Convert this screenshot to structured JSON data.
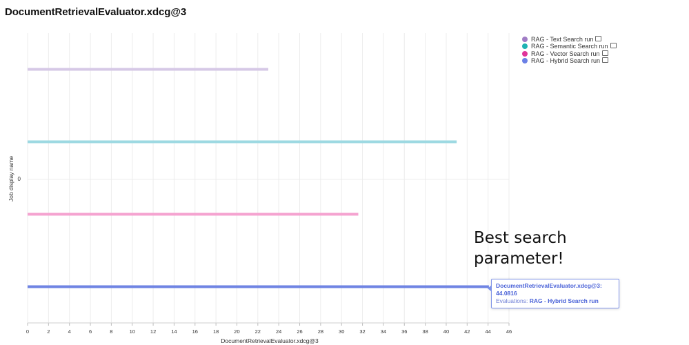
{
  "chart_title": "DocumentRetrievalEvaluator.xdcg@3",
  "chart_data": {
    "type": "bar",
    "orientation": "horizontal",
    "xlabel": "DocumentRetrievalEvaluator.xdcg@3",
    "ylabel": "Job display name",
    "y_tick": "0",
    "xlim": [
      0,
      46
    ],
    "x_ticks": [
      0,
      2,
      4,
      6,
      8,
      10,
      12,
      14,
      16,
      18,
      20,
      22,
      24,
      26,
      28,
      30,
      32,
      34,
      36,
      38,
      40,
      42,
      44,
      46
    ],
    "grid": true,
    "legend_position": "top-right",
    "series": [
      {
        "name": "RAG - Text Search run",
        "value": 23,
        "color": "#a07cc5",
        "bar_color": "#d6c8e6"
      },
      {
        "name": "RAG - Semantic Search run",
        "value": 41,
        "color": "#1fb3b3",
        "bar_color": "#9dd9e2"
      },
      {
        "name": "RAG - Vector Search run",
        "value": 31.6,
        "color": "#e0359a",
        "bar_color": "#f5a3d0"
      },
      {
        "name": "RAG - Hybrid Search run",
        "value": 44.0816,
        "color": "#6b80e6",
        "bar_color": "#6f84e3"
      }
    ]
  },
  "annotation": {
    "line1": "Best search",
    "line2": "parameter!"
  },
  "tooltip": {
    "header": "DocumentRetrievalEvaluator.xdcg@3: 44.0816",
    "prefix": "Evaluations:",
    "value": "RAG - Hybrid Search run"
  }
}
